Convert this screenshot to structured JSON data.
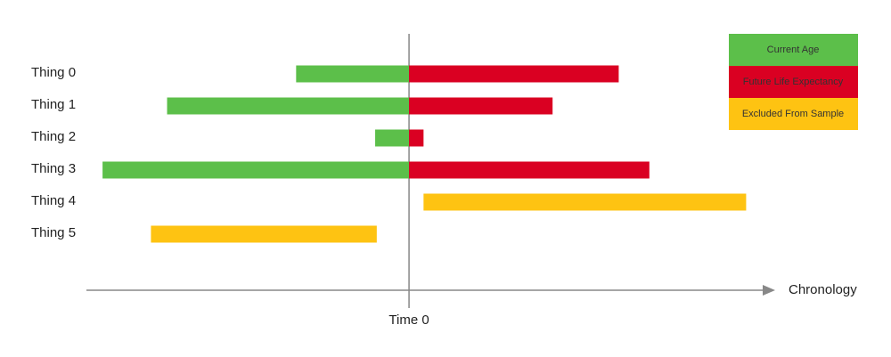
{
  "chart_data": {
    "type": "timeline",
    "categories": [
      "Thing 0",
      "Thing 1",
      "Thing 2",
      "Thing 3",
      "Thing 4",
      "Thing 5"
    ],
    "series": [
      {
        "name": "Current Age",
        "color": "#5cbf4a",
        "values": [
          3.5,
          7.5,
          1.05,
          9.5,
          null,
          null
        ]
      },
      {
        "name": "Future Life Expectancy",
        "color": "#da0022",
        "values": [
          6.5,
          4.45,
          0.45,
          7.45,
          null,
          null
        ]
      },
      {
        "name": "Excluded From Sample",
        "color": "#fec312",
        "values": [
          null,
          null,
          null,
          null,
          [
            0.45,
            10.45
          ],
          [
            -8.0,
            -1.0
          ]
        ]
      }
    ],
    "xlabel": "Chronology",
    "xlim": [
      -10,
      11.35
    ],
    "xticks": [
      {
        "value": 0,
        "label": "Time 0"
      }
    ],
    "legend": "top-right"
  }
}
